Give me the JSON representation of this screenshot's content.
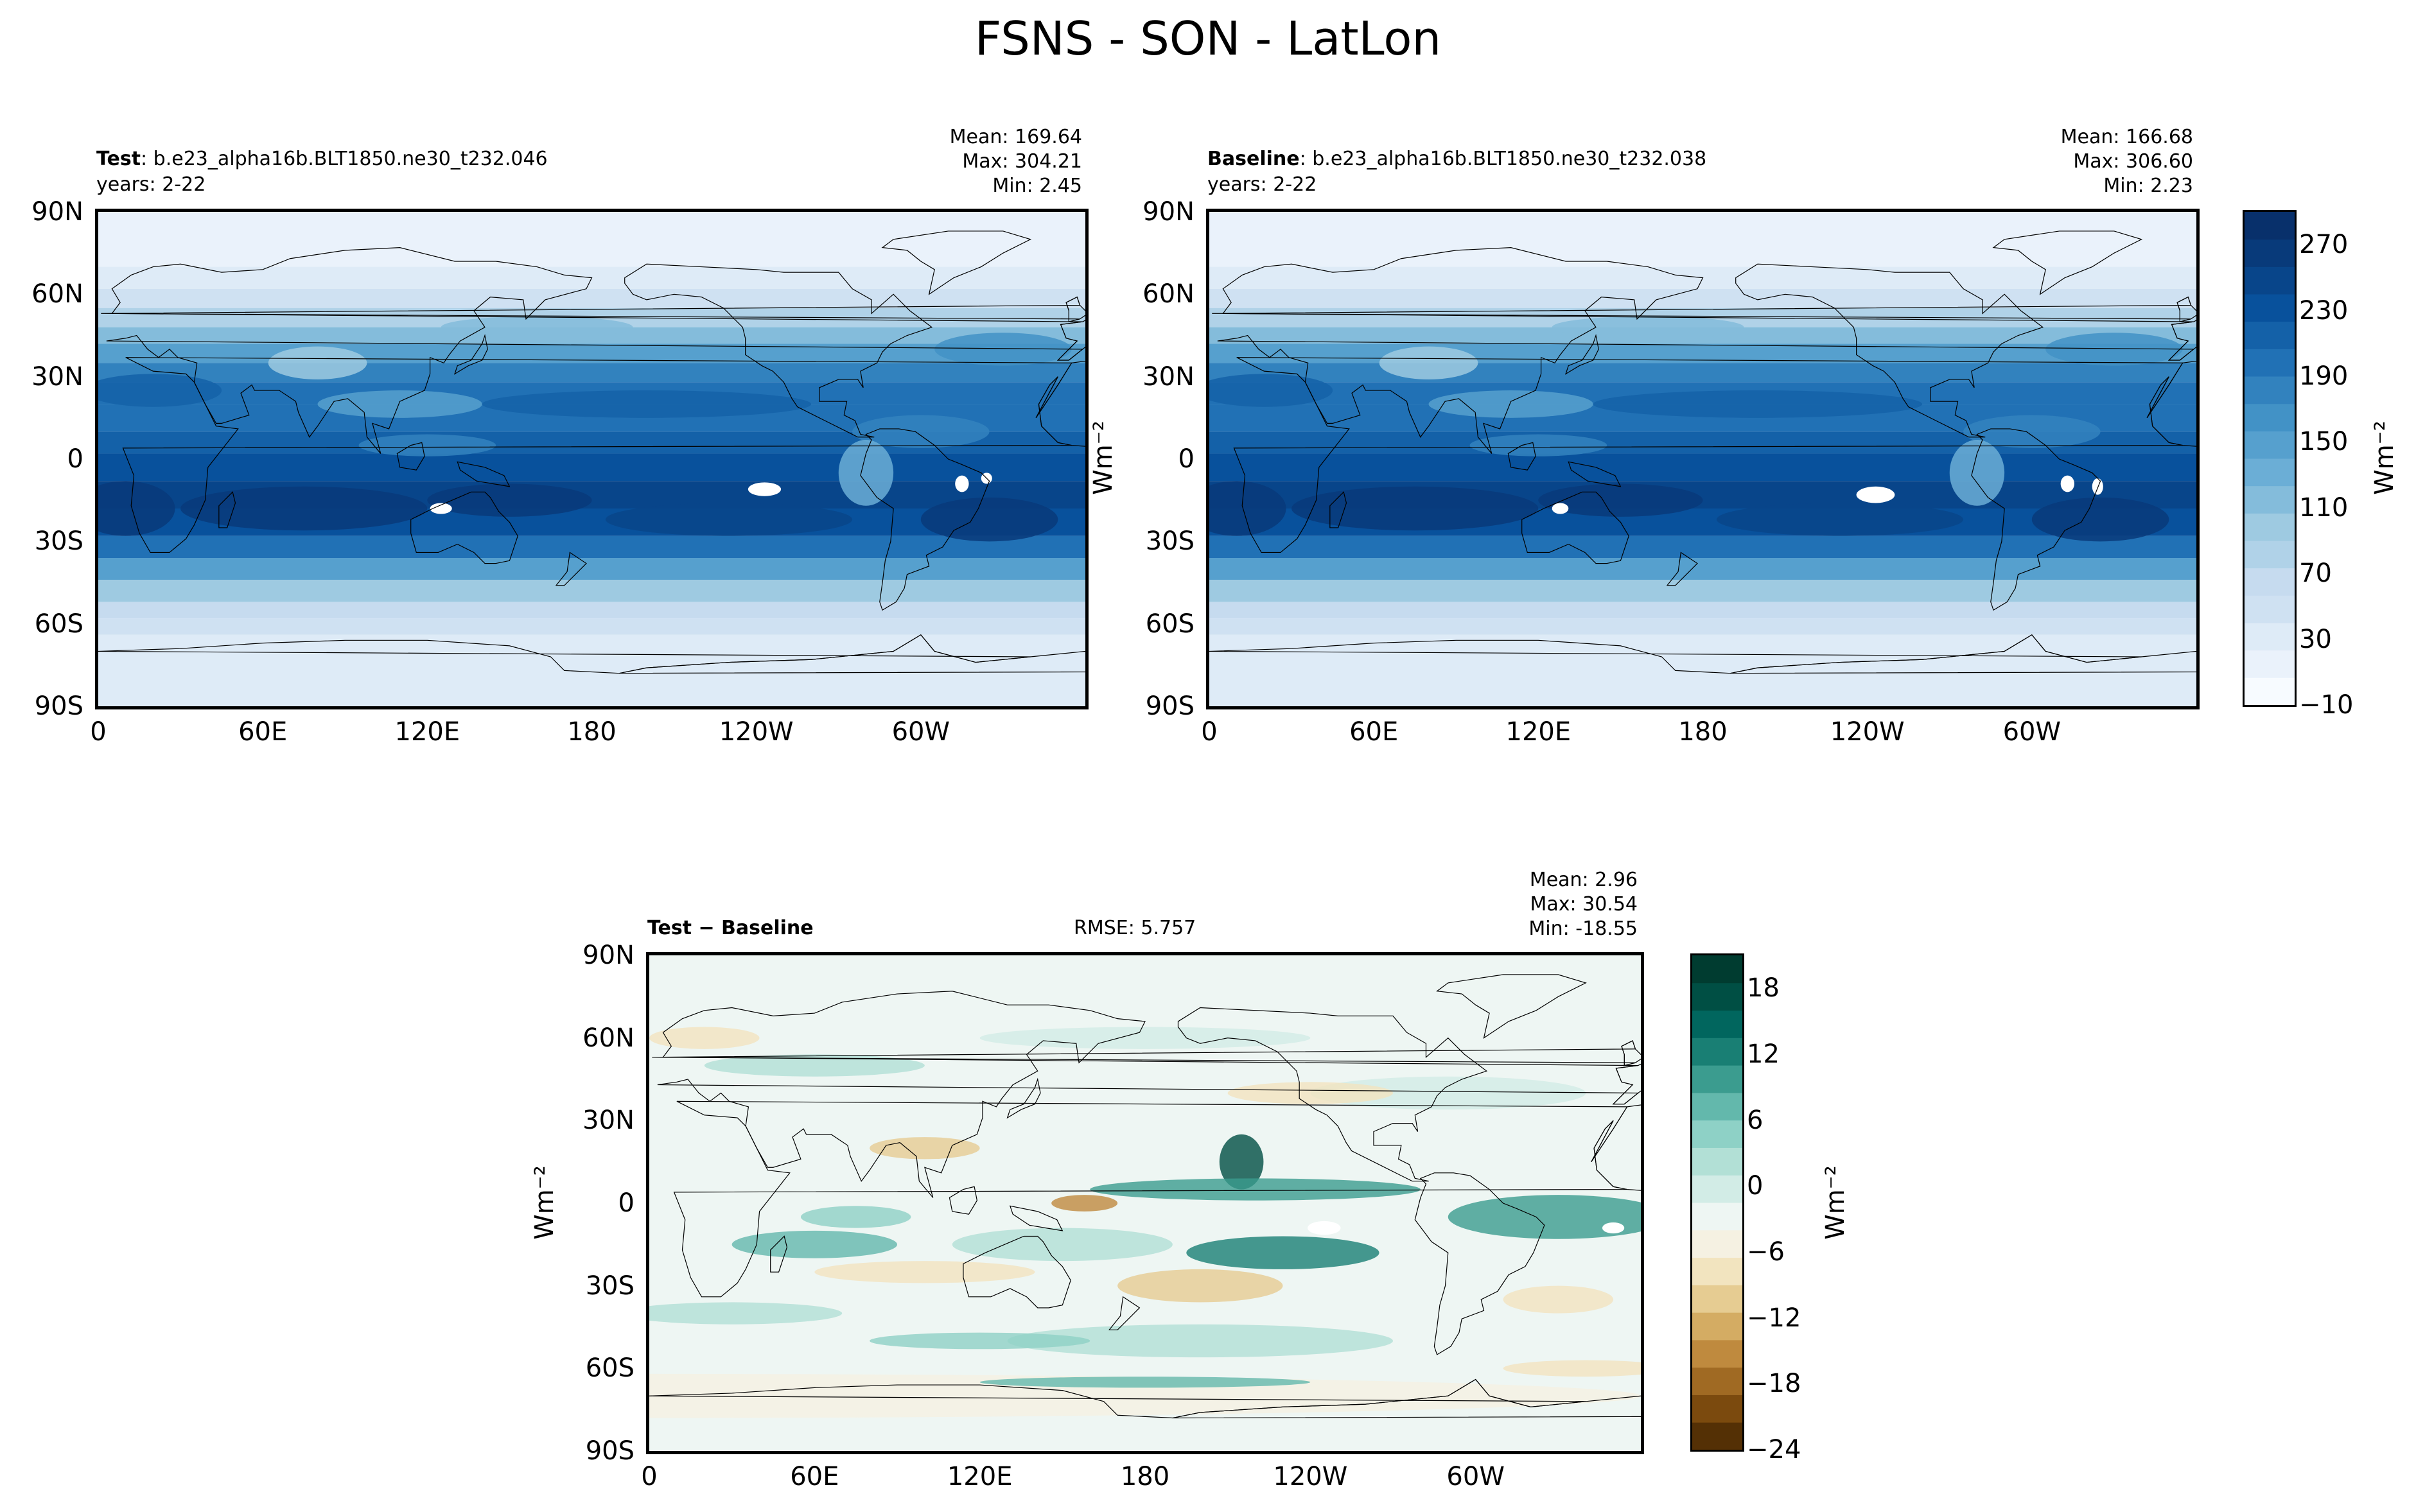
{
  "figure_title": "FSNS - SON - LatLon",
  "units_label": "Wm⁻²",
  "chart_data": [
    {
      "type": "heatmap",
      "panel": "test",
      "label_bold": "Test",
      "label_rest": ": b.e23_alpha16b.BLT1850.ne30_t232.046",
      "years": "years: 2-22",
      "stats": {
        "mean": "Mean: 169.64",
        "max": "Max: 304.21",
        "min": "Min:  2.45"
      },
      "xticks": [
        "0",
        "60E",
        "120E",
        "180",
        "120W",
        "60W"
      ],
      "yticks": [
        "90N",
        "60N",
        "30N",
        "0",
        "30S",
        "60S",
        "90S"
      ],
      "xlim": [
        0,
        360
      ],
      "ylim": [
        -90,
        90
      ]
    },
    {
      "type": "heatmap",
      "panel": "baseline",
      "label_bold": "Baseline",
      "label_rest": ": b.e23_alpha16b.BLT1850.ne30_t232.038",
      "years": "years: 2-22",
      "stats": {
        "mean": "Mean: 166.68",
        "max": "Max: 306.60",
        "min": "Min:  2.23"
      },
      "xticks": [
        "0",
        "60E",
        "120E",
        "180",
        "120W",
        "60W"
      ],
      "yticks": [
        "90N",
        "60N",
        "30N",
        "0",
        "30S",
        "60S",
        "90S"
      ],
      "xlim": [
        0,
        360
      ],
      "ylim": [
        -90,
        90
      ],
      "colorbar": {
        "ticks": [
          "270",
          "230",
          "190",
          "150",
          "110",
          "70",
          "30",
          "−10"
        ],
        "range": [
          -10,
          290
        ]
      }
    },
    {
      "type": "heatmap",
      "panel": "difference",
      "label": "Test − Baseline",
      "rmse": "RMSE: 5.757",
      "stats": {
        "mean": "Mean:  2.96",
        "max": "Max: 30.54",
        "min": "Min: -18.55"
      },
      "xticks": [
        "0",
        "60E",
        "120E",
        "180",
        "120W",
        "60W"
      ],
      "yticks": [
        "90N",
        "60N",
        "30N",
        "0",
        "30S",
        "60S",
        "90S"
      ],
      "xlim": [
        0,
        360
      ],
      "ylim": [
        -90,
        90
      ],
      "colorbar": {
        "ticks": [
          "18",
          "12",
          "6",
          "0",
          "−6",
          "−12",
          "−18",
          "−24"
        ],
        "range": [
          -24,
          21
        ]
      }
    }
  ],
  "colors": {
    "blues": [
      "#f7fbff",
      "#eaf2fb",
      "#deebf7",
      "#cfe1f2",
      "#c6dbef",
      "#b0d2e8",
      "#9ecae1",
      "#84bcdb",
      "#6baed6",
      "#56a0ce",
      "#4292c6",
      "#3282be",
      "#2171b5",
      "#1461a8",
      "#08519c",
      "#08458a",
      "#083a7a",
      "#08306b"
    ],
    "brbg": [
      "#543005",
      "#7b4a0e",
      "#a06a23",
      "#bf8a3e",
      "#d4ac63",
      "#e6cc92",
      "#f2e4bf",
      "#f5f1e2",
      "#eef6f3",
      "#d2ece6",
      "#b2e0d6",
      "#8ed1c6",
      "#63b8ac",
      "#3b9c8f",
      "#197f74",
      "#01665e",
      "#004f44",
      "#003c30"
    ]
  }
}
